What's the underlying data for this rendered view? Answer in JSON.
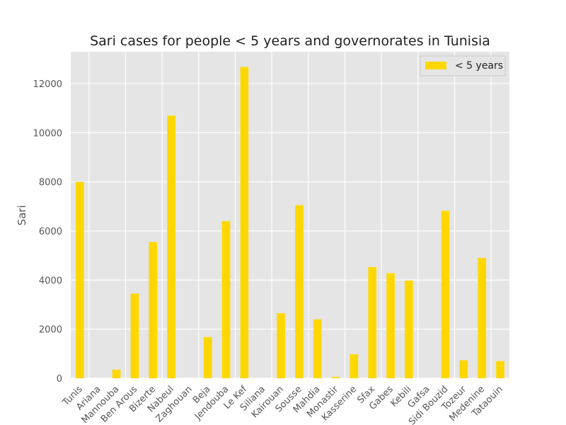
{
  "chart_data": {
    "type": "bar",
    "title": "Sari cases for people < 5 years and governorates in Tunisia",
    "xlabel": "",
    "ylabel": "Sari",
    "ylim": [
      0,
      13300
    ],
    "yticks": [
      0,
      2000,
      4000,
      6000,
      8000,
      10000,
      12000
    ],
    "grid": true,
    "legend_position": "top-right",
    "categories": [
      "Tunis",
      "Ariana",
      "Mannouba",
      "Ben Arous",
      "Bizerte",
      "Nabeul",
      "Zaghouan",
      "Beja",
      "Jendouba",
      "Le Kef",
      "Siliana",
      "Kairouan",
      "Sousse",
      "Mahdia",
      "Monastir",
      "Kasserine",
      "Sfax",
      "Gabes",
      "Kebili",
      "Gafsa",
      "Sidi Bouzid",
      "Tozeur",
      "Medenine",
      "Tataouin"
    ],
    "series": [
      {
        "name": "< 5 years",
        "color": "#FFD700",
        "values": [
          8000,
          0,
          350,
          3450,
          5550,
          10700,
          0,
          1680,
          6400,
          12680,
          0,
          2650,
          7050,
          2400,
          50,
          980,
          4530,
          4280,
          3980,
          0,
          6820,
          730,
          4900,
          700
        ]
      }
    ]
  },
  "colors": {
    "plot_background": "#E5E5E5",
    "grid": "#FFFFFF"
  }
}
